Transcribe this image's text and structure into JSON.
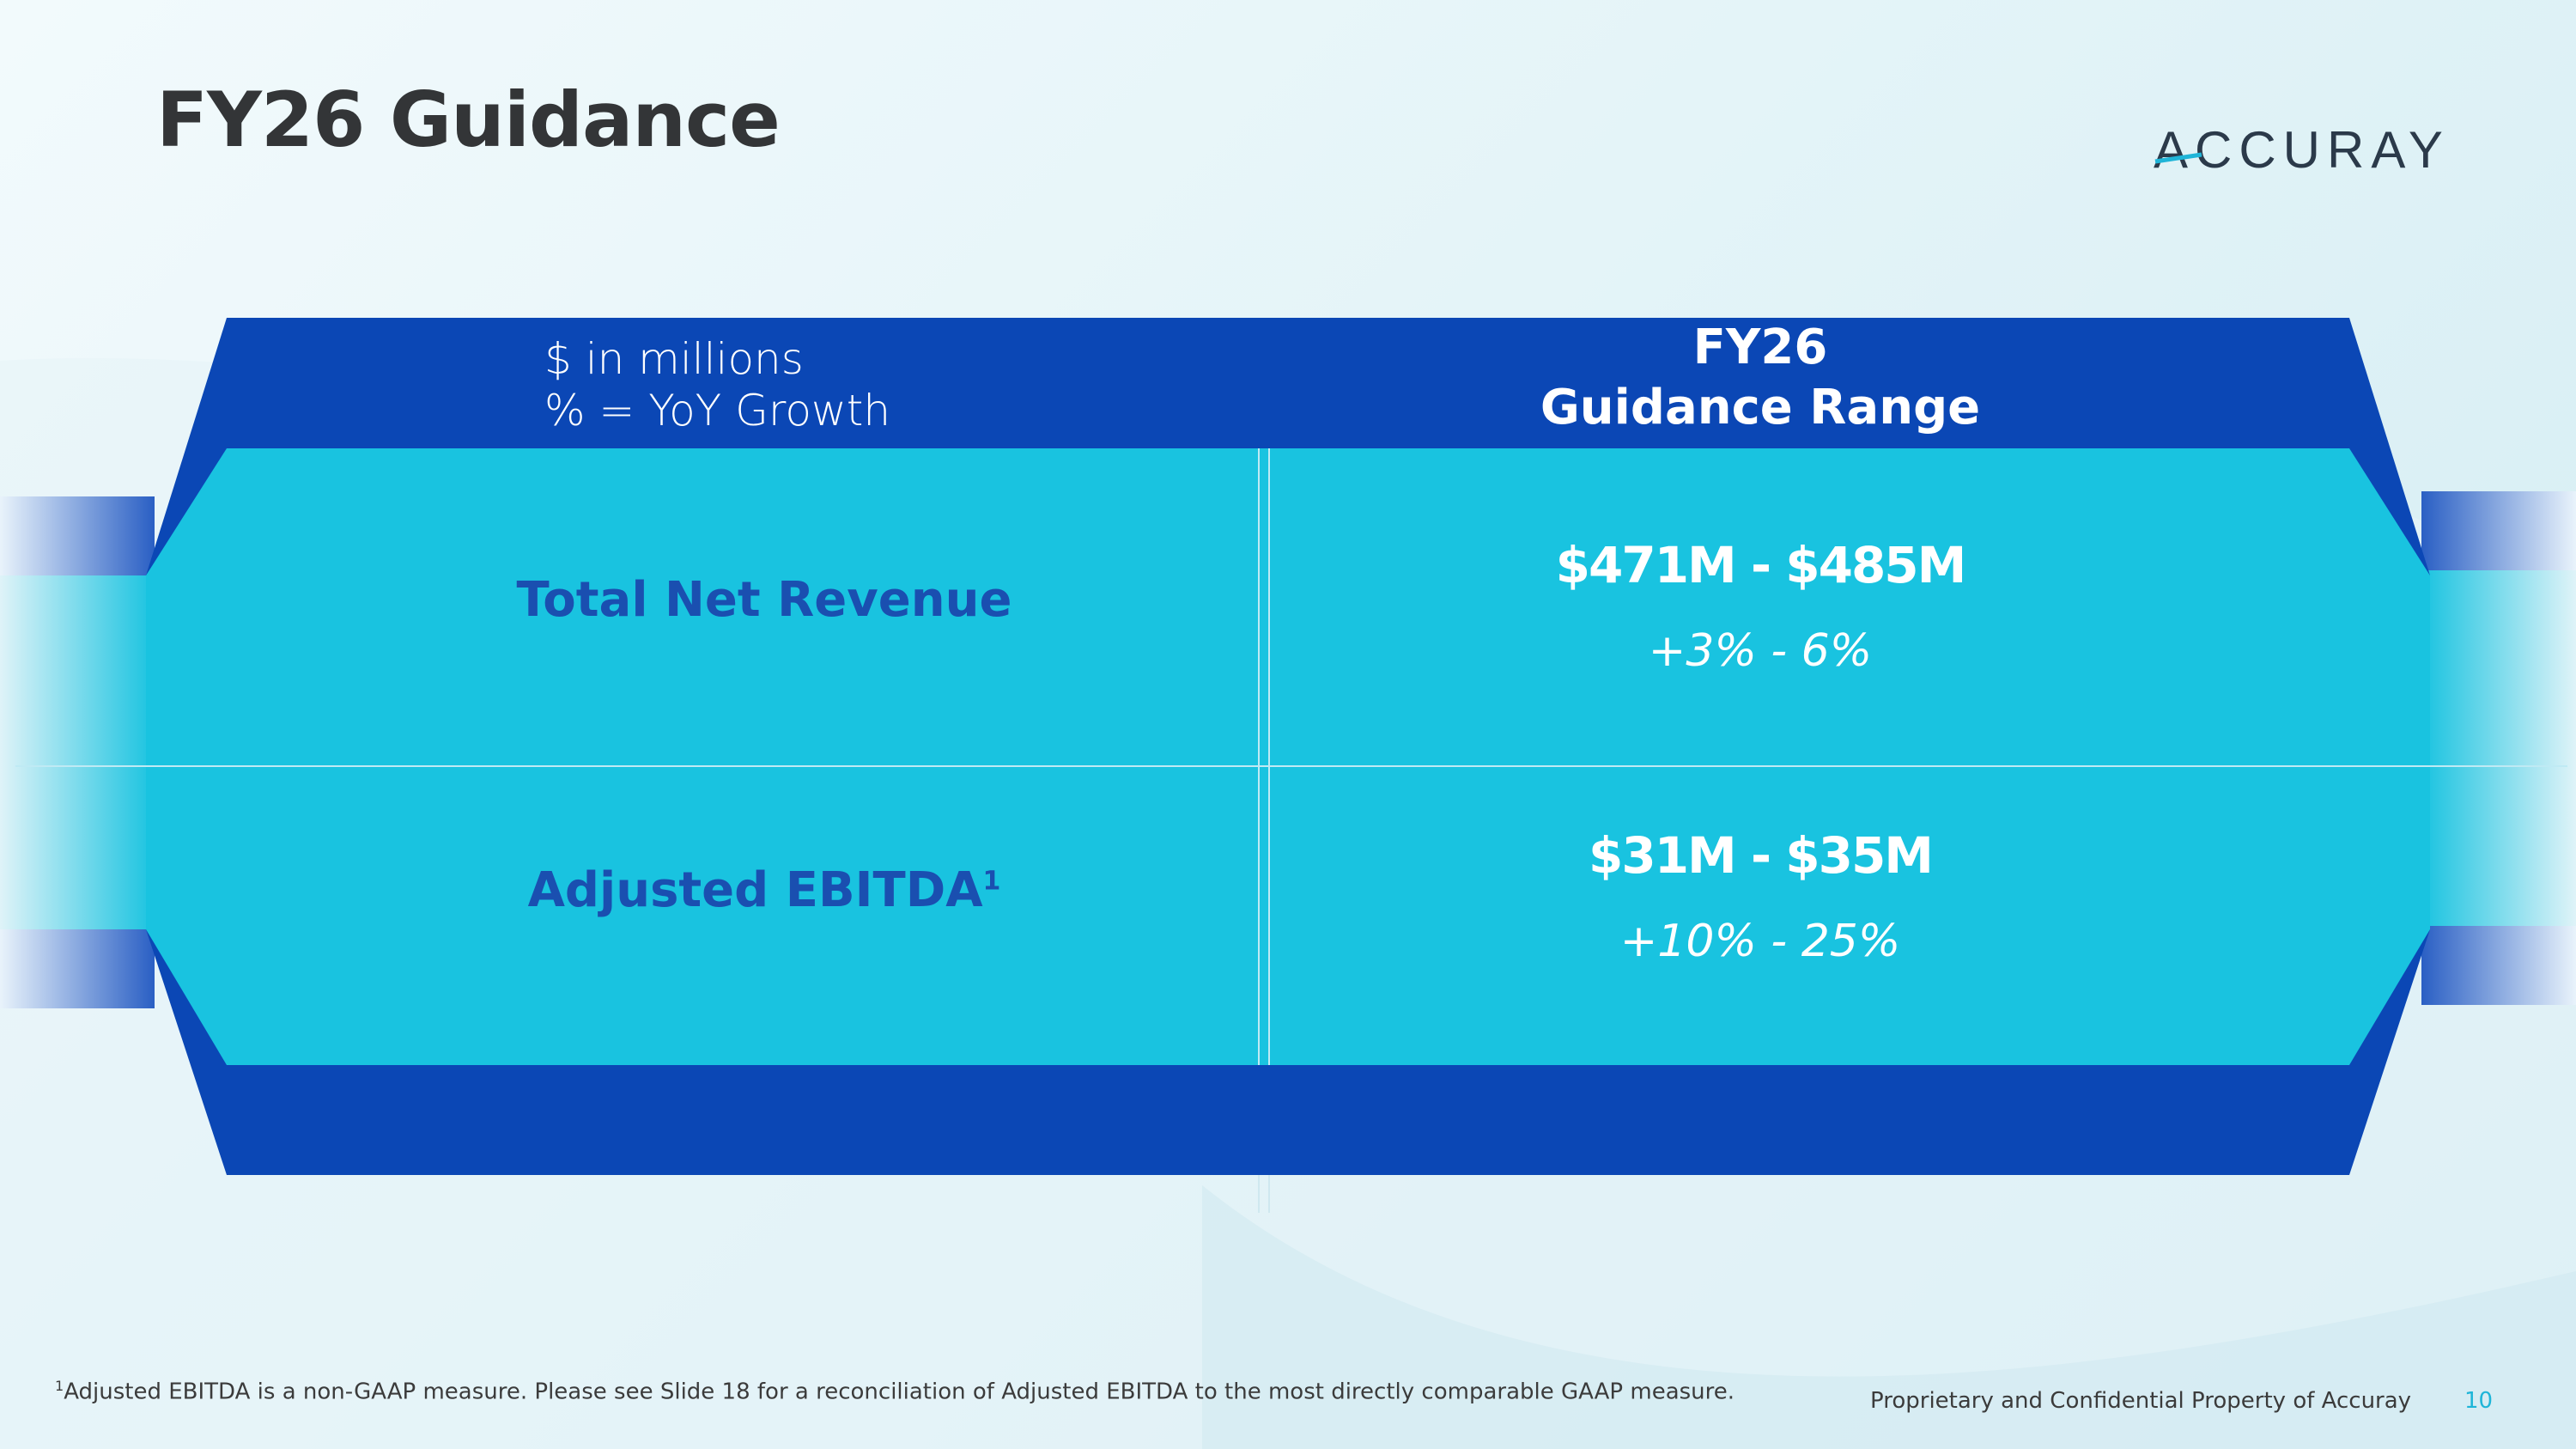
{
  "slide": {
    "title": "FY26 Guidance",
    "page_number": "10",
    "confidential": "Proprietary and Confidential Property of Accuray"
  },
  "logo": {
    "text": "ACCURAY"
  },
  "table": {
    "units_line1": "$ in millions",
    "units_line2": "% = YoY Growth",
    "column_header_line1": "FY26",
    "column_header_line2": "Guidance  Range",
    "rows": [
      {
        "label": "Total Net Revenue",
        "superscript": "",
        "range": "$471M - $485M",
        "growth": "+3% - 6%"
      },
      {
        "label": "Adjusted EBITDA",
        "superscript": "1",
        "range": "$31M - $35M",
        "growth": "+10% - 25%"
      }
    ]
  },
  "footnote": {
    "marker": "1",
    "text": "Adjusted EBITDA is a non-GAAP measure.  Please see Slide 18 for a reconciliation of Adjusted EBITDA to the most directly comparable GAAP measure."
  },
  "colors": {
    "dark_blue": "#0b47b5",
    "cyan": "#19c3e0",
    "label_blue": "#1a4fb0",
    "page_number": "#1fb5d8"
  }
}
